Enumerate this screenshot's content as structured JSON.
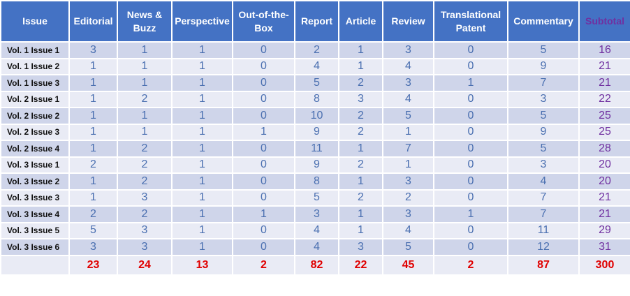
{
  "table": {
    "columns": [
      "Issue",
      "Editorial",
      "News & Buzz",
      "Perspective",
      "Out-of-the-Box",
      "Report",
      "Article",
      "Review",
      "Translational Patent",
      "Commentary",
      "Subtotal"
    ],
    "rows": [
      {
        "issue": "Vol. 1 Issue 1",
        "values": [
          3,
          1,
          1,
          0,
          2,
          1,
          3,
          0,
          5,
          16
        ]
      },
      {
        "issue": "Vol. 1 Issue 2",
        "values": [
          1,
          1,
          1,
          0,
          4,
          1,
          4,
          0,
          9,
          21
        ]
      },
      {
        "issue": "Vol. 1 Issue 3",
        "values": [
          1,
          1,
          1,
          0,
          5,
          2,
          3,
          1,
          7,
          21
        ]
      },
      {
        "issue": "Vol. 2 Issue 1",
        "values": [
          1,
          2,
          1,
          0,
          8,
          3,
          4,
          0,
          3,
          22
        ]
      },
      {
        "issue": "Vol. 2 Issue 2",
        "values": [
          1,
          1,
          1,
          0,
          10,
          2,
          5,
          0,
          5,
          25
        ]
      },
      {
        "issue": "Vol. 2 Issue 3",
        "values": [
          1,
          1,
          1,
          1,
          9,
          2,
          1,
          0,
          9,
          25
        ]
      },
      {
        "issue": "Vol. 2 Issue 4",
        "values": [
          1,
          2,
          1,
          0,
          11,
          1,
          7,
          0,
          5,
          28
        ]
      },
      {
        "issue": "Vol. 3 Issue 1",
        "values": [
          2,
          2,
          1,
          0,
          9,
          2,
          1,
          0,
          3,
          20
        ]
      },
      {
        "issue": "Vol. 3 Issue 2",
        "values": [
          1,
          2,
          1,
          0,
          8,
          1,
          3,
          0,
          4,
          20
        ]
      },
      {
        "issue": "Vol. 3 Issue 3",
        "values": [
          1,
          3,
          1,
          0,
          5,
          2,
          2,
          0,
          7,
          21
        ]
      },
      {
        "issue": "Vol. 3 Issue 4",
        "values": [
          2,
          2,
          1,
          1,
          3,
          1,
          3,
          1,
          7,
          21
        ]
      },
      {
        "issue": "Vol. 3 Issue 5",
        "values": [
          5,
          3,
          1,
          0,
          4,
          1,
          4,
          0,
          11,
          29
        ]
      },
      {
        "issue": "Vol. 3 Issue 6",
        "values": [
          3,
          3,
          1,
          0,
          4,
          3,
          5,
          0,
          12,
          31
        ]
      }
    ],
    "totals": [
      23,
      24,
      13,
      2,
      82,
      22,
      45,
      2,
      87,
      300
    ]
  }
}
